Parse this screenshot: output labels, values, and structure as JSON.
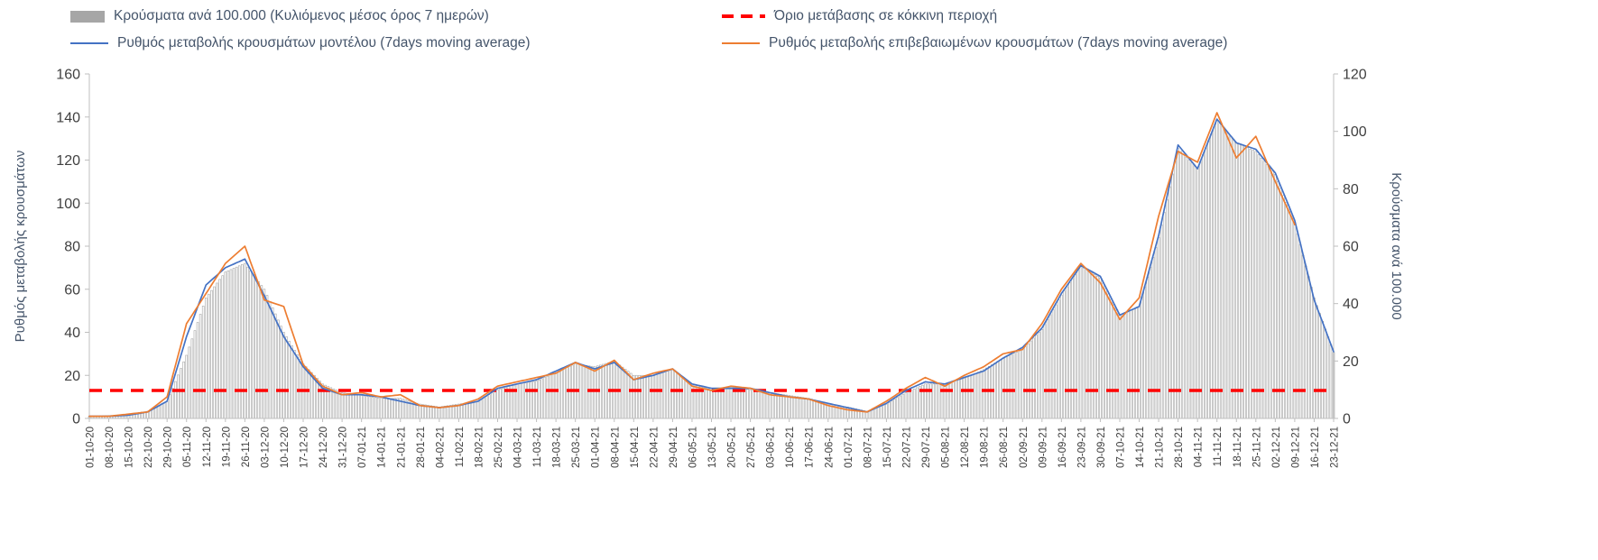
{
  "legend": {
    "bars": "Κρούσματα ανά 100.000 (Κυλιόμενος μέσος όρος 7 ημερών)",
    "threshold": "Όριο μετάβασης σε κόκκινη περιοχή",
    "model": "Ρυθμός μεταβολής κρουσμάτων μοντέλου (7days moving average)",
    "confirmed": "Ρυθμός μεταβολής επιβεβαιωμένων κρουσμάτων (7days moving average)"
  },
  "axes": {
    "left_label": "Ρυθμός μεταβολής κρουσμάτων",
    "right_label": "Κρούσματα ανά 100.000"
  },
  "colors": {
    "model_line": "#4472C4",
    "confirmed_line": "#ED7D31",
    "threshold_line": "#FF0000",
    "bars": "#A6A6A6",
    "axis_text": "#404040",
    "axis_line": "#BFBFBF"
  },
  "chart_data": {
    "type": "bar",
    "subtype": "combo-bar-and-lines",
    "grid": false,
    "legend_position": "top",
    "categories": [
      "01-10-20",
      "08-10-20",
      "15-10-20",
      "22-10-20",
      "29-10-20",
      "05-11-20",
      "12-11-20",
      "19-11-20",
      "26-11-20",
      "03-12-20",
      "10-12-20",
      "17-12-20",
      "24-12-20",
      "31-12-20",
      "07-01-21",
      "14-01-21",
      "21-01-21",
      "28-01-21",
      "04-02-21",
      "11-02-21",
      "18-02-21",
      "25-02-21",
      "04-03-21",
      "11-03-21",
      "18-03-21",
      "25-03-21",
      "01-04-21",
      "08-04-21",
      "15-04-21",
      "22-04-21",
      "29-04-21",
      "06-05-21",
      "13-05-21",
      "20-05-21",
      "27-05-21",
      "03-06-21",
      "10-06-21",
      "17-06-21",
      "24-06-21",
      "01-07-21",
      "08-07-21",
      "15-07-21",
      "22-07-21",
      "29-07-21",
      "05-08-21",
      "12-08-21",
      "19-08-21",
      "26-08-21",
      "02-09-21",
      "09-09-21",
      "16-09-21",
      "23-09-21",
      "30-09-21",
      "07-10-21",
      "14-10-21",
      "21-10-21",
      "28-10-21",
      "04-11-21",
      "11-11-21",
      "18-11-21",
      "25-11-21",
      "02-12-21",
      "09-12-21",
      "16-12-21",
      "23-12-21"
    ],
    "left_axis": {
      "label": "Ρυθμός μεταβολής κρουσμάτων",
      "min": 0,
      "max": 160,
      "step": 20
    },
    "right_axis": {
      "label": "Κρούσματα ανά 100.000",
      "min": 0,
      "max": 120,
      "step": 20
    },
    "series": [
      {
        "name": "Κρούσματα ανά 100.000 (Κυλιόμενος μέσος όρος 7 ημερών)",
        "type": "bar",
        "axis": "right",
        "color": "#A6A6A6",
        "values": [
          0.7,
          1,
          1.5,
          2.5,
          6,
          22,
          42,
          51,
          54,
          45,
          30,
          19,
          12,
          9,
          8,
          7,
          7,
          5,
          4,
          5,
          6,
          10,
          12,
          13,
          16,
          19,
          18,
          20,
          15,
          15,
          17,
          12,
          10,
          11,
          10,
          9,
          8,
          7,
          5,
          4,
          2.5,
          5,
          9,
          12,
          12,
          14,
          17,
          21,
          24,
          31,
          43,
          53,
          49,
          36,
          39,
          63,
          94,
          87,
          104,
          96,
          93,
          85,
          68,
          42,
          23
        ]
      },
      {
        "name": "Ρυθμός μεταβολής κρουσμάτων μοντέλου (7days moving average)",
        "type": "line",
        "axis": "left",
        "color": "#4472C4",
        "values": [
          1,
          1,
          1.5,
          3,
          8,
          38,
          62,
          70,
          74,
          57,
          38,
          24,
          14,
          11,
          11,
          10,
          8,
          6,
          5,
          6,
          8,
          14,
          16,
          18,
          22,
          26,
          23,
          26,
          18,
          20,
          23,
          16,
          14,
          14,
          14,
          12,
          10,
          9,
          7,
          5,
          3,
          7,
          13,
          17,
          16,
          19,
          22,
          28,
          33,
          42,
          58,
          71,
          66,
          48,
          52,
          85,
          127,
          116,
          139,
          128,
          125,
          114,
          92,
          55,
          31
        ]
      },
      {
        "name": "Ρυθμός μεταβολής επιβεβαιωμένων κρουσμάτων (7days moving average)",
        "type": "line",
        "axis": "left",
        "color": "#ED7D31",
        "values": [
          1,
          1,
          2,
          3,
          10,
          44,
          58,
          72,
          80,
          55,
          52,
          25,
          15,
          11,
          12,
          10,
          11,
          6,
          5,
          6,
          9,
          15,
          17,
          19,
          21,
          26,
          22,
          27,
          18,
          21,
          23,
          15,
          13,
          15,
          14,
          11,
          10,
          9,
          6,
          4,
          3,
          8,
          14,
          19,
          15,
          20,
          24,
          30,
          32,
          44,
          60,
          72,
          63,
          46,
          56,
          94,
          124,
          119,
          142,
          121,
          131,
          110,
          90,
          null,
          null
        ]
      },
      {
        "name": "Όριο μετάβασης σε κόκκινη περιοχή",
        "type": "threshold",
        "axis": "left",
        "color": "#FF0000",
        "value": 13
      }
    ]
  }
}
